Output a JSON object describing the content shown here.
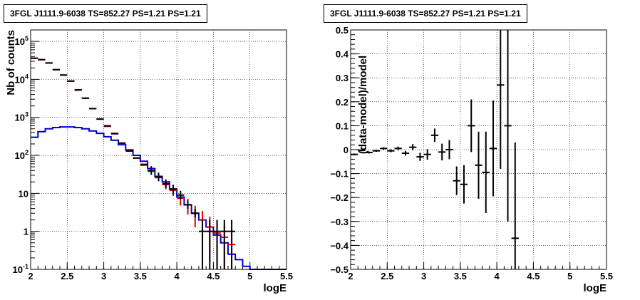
{
  "chart_data": [
    {
      "type": "histogram-step-with-errorbars",
      "title": "3FGL J1111.9-6038 TS=852.27 PS=1.21 PS=1.21",
      "xlabel": "logE",
      "ylabel": "Nb of counts",
      "xlim": [
        2,
        5.5
      ],
      "ylim": [
        0.1,
        200000
      ],
      "yscale": "log",
      "grid": true,
      "x_ticks": [
        "2",
        "2.5",
        "3",
        "3.5",
        "4",
        "4.5",
        "5",
        "5.5"
      ],
      "y_ticks": [
        "10^-1",
        "1",
        "10",
        "10^2",
        "10^3",
        "10^4",
        "10^5"
      ],
      "bin_edges": [
        2.0,
        2.1,
        2.2,
        2.3,
        2.4,
        2.5,
        2.6,
        2.7,
        2.8,
        2.9,
        3.0,
        3.1,
        3.2,
        3.3,
        3.4,
        3.5,
        3.6,
        3.7,
        3.8,
        3.9,
        4.0,
        4.1,
        4.2,
        4.3,
        4.4,
        4.5,
        4.6,
        4.7,
        4.8,
        4.9,
        5.0,
        5.1,
        5.2,
        5.3,
        5.4,
        5.5
      ],
      "series": [
        {
          "color": "#000000",
          "style": "points-with-errorbars",
          "x": [
            2.05,
            2.15,
            2.25,
            2.35,
            2.45,
            2.55,
            2.65,
            2.75,
            2.85,
            2.95,
            3.05,
            3.15,
            3.25,
            3.35,
            3.45,
            3.55,
            3.65,
            3.75,
            3.85,
            3.95,
            4.05,
            4.15,
            4.25,
            4.35,
            4.45,
            4.55,
            4.65,
            4.75
          ],
          "y": [
            36000,
            33000,
            27000,
            18000,
            13000,
            9000,
            5300,
            3200,
            1700,
            900,
            600,
            370,
            210,
            130,
            85,
            58,
            40,
            27,
            18,
            13,
            9,
            5,
            3,
            1,
            1,
            1,
            1,
            1
          ],
          "yerr_low": [
            0,
            0,
            0,
            0,
            0,
            0,
            0,
            0,
            0,
            0,
            0,
            0,
            0,
            0,
            0,
            0,
            0,
            0,
            0,
            0,
            0,
            0,
            0,
            1,
            1,
            1,
            1,
            1
          ],
          "yerr_high": [
            0,
            0,
            0,
            0,
            0,
            0,
            0,
            0,
            0,
            0,
            0,
            0,
            0,
            0,
            0,
            0,
            0,
            0,
            0,
            0,
            0,
            0,
            0,
            1,
            1,
            1,
            1,
            1
          ]
        },
        {
          "color": "#e00000",
          "style": "points-with-errorbars",
          "x": [
            2.05,
            2.15,
            2.25,
            2.35,
            2.45,
            2.55,
            2.65,
            2.75,
            2.85,
            2.95,
            3.05,
            3.15,
            3.25,
            3.35,
            3.45,
            3.55,
            3.65,
            3.75,
            3.85,
            3.95,
            4.05,
            4.15,
            4.25,
            4.35,
            4.45,
            4.55,
            4.65,
            4.75
          ],
          "y": [
            36000,
            33000,
            27000,
            18000,
            13000,
            9000,
            5200,
            3200,
            1700,
            900,
            580,
            380,
            210,
            135,
            85,
            55,
            38,
            26,
            17,
            12,
            7.5,
            5,
            3,
            2,
            1.3,
            0.9,
            0.7,
            0.45
          ]
        },
        {
          "color": "#0000cc",
          "style": "step",
          "y": [
            300,
            420,
            500,
            540,
            560,
            560,
            540,
            500,
            440,
            380,
            310,
            250,
            190,
            140,
            100,
            70,
            45,
            28,
            20,
            13,
            8,
            5,
            3,
            2,
            1.3,
            0.8,
            0.5,
            0.25,
            0.18,
            0.12,
            0.1,
            0.1,
            0.1,
            0.1,
            0.1
          ]
        }
      ]
    },
    {
      "type": "scatter-with-errorbars",
      "title": "3FGL J1111.9-6038 TS=852.27 PS=1.21 PS=1.21",
      "xlabel": "logE",
      "ylabel": "(data-model)/model",
      "xlim": [
        2,
        5.5
      ],
      "ylim": [
        -0.5,
        0.5
      ],
      "grid": true,
      "x_ticks": [
        "2",
        "2.5",
        "3",
        "3.5",
        "4",
        "4.5",
        "5",
        "5.5"
      ],
      "y_ticks": [
        "-0.5",
        "-0.4",
        "-0.3",
        "-0.2",
        "-0.1",
        "0",
        "0.1",
        "0.2",
        "0.3",
        "0.4",
        "0.5"
      ],
      "x": [
        2.05,
        2.15,
        2.25,
        2.35,
        2.45,
        2.55,
        2.65,
        2.75,
        2.85,
        2.95,
        3.05,
        3.15,
        3.25,
        3.35,
        3.45,
        3.55,
        3.65,
        3.75,
        3.85,
        3.95,
        4.05,
        4.15,
        4.25
      ],
      "y": [
        -0.02,
        -0.003,
        -0.012,
        -0.005,
        0.005,
        -0.005,
        0.005,
        -0.015,
        0.01,
        -0.03,
        -0.02,
        0.06,
        -0.01,
        0.0,
        -0.13,
        -0.145,
        0.1,
        -0.065,
        -0.095,
        0.005,
        0.27,
        0.1,
        -0.37
      ],
      "yerr": [
        0.004,
        0.004,
        0.004,
        0.004,
        0.005,
        0.006,
        0.008,
        0.01,
        0.013,
        0.017,
        0.022,
        0.028,
        0.035,
        0.04,
        0.06,
        0.08,
        0.11,
        0.14,
        0.17,
        0.2,
        0.35,
        0.4,
        0.4
      ]
    }
  ]
}
